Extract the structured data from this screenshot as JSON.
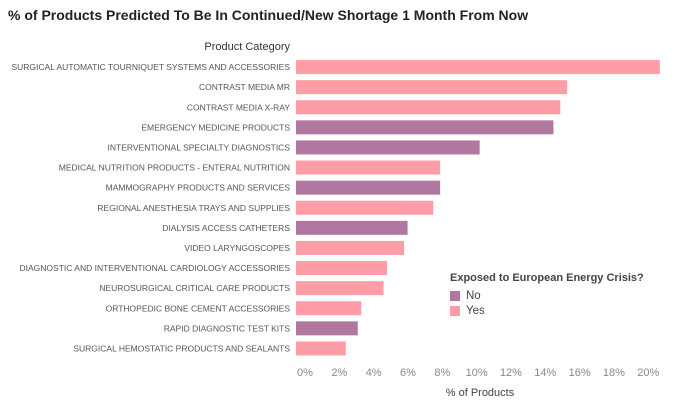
{
  "title": "% of Products Predicted To Be In Continued/New Shortage 1 Month From Now",
  "chart_data": {
    "type": "bar",
    "orientation": "horizontal",
    "category_header": "Product Category",
    "xlabel": "% of Products",
    "xlim": [
      0,
      21.5
    ],
    "xticks": [
      "0%",
      "2%",
      "4%",
      "6%",
      "8%",
      "10%",
      "12%",
      "14%",
      "16%",
      "18%",
      "20%"
    ],
    "grid": false,
    "legend_position": "bottom-right",
    "categories": [
      "SURGICAL AUTOMATIC TOURNIQUET SYSTEMS AND ACCESSORIES",
      "CONTRAST MEDIA MR",
      "CONTRAST MEDIA X-RAY",
      "EMERGENCY MEDICINE PRODUCTS",
      "INTERVENTIONAL SPECIALTY DIAGNOSTICS",
      "MEDICAL NUTRITION PRODUCTS - ENTERAL NUTRITION",
      "MAMMOGRAPHY PRODUCTS AND SERVICES",
      "REGIONAL ANESTHESIA TRAYS AND SUPPLIES",
      "DIALYSIS ACCESS CATHETERS",
      "VIDEO LARYNGOSCOPES",
      "DIAGNOSTIC AND INTERVENTIONAL CARDIOLOGY ACCESSORIES",
      "NEUROSURGICAL CRITICAL CARE PRODUCTS",
      "ORTHOPEDIC BONE CEMENT ACCESSORIES",
      "RAPID DIAGNOSTIC TEST KITS",
      "SURGICAL HEMOSTATIC PRODUCTS AND SEALANTS"
    ],
    "values": [
      21.2,
      15.8,
      15.4,
      15.0,
      10.7,
      8.4,
      8.4,
      8.0,
      6.5,
      6.3,
      5.3,
      5.1,
      3.8,
      3.6,
      2.9
    ],
    "groups": [
      "Yes",
      "Yes",
      "Yes",
      "No",
      "No",
      "Yes",
      "No",
      "Yes",
      "No",
      "Yes",
      "Yes",
      "Yes",
      "Yes",
      "No",
      "Yes"
    ],
    "legend": {
      "title": "Exposed to European Energy Crisis?",
      "items": [
        {
          "label": "No",
          "color": "#b0779f"
        },
        {
          "label": "Yes",
          "color": "#ff9da7"
        }
      ]
    }
  }
}
